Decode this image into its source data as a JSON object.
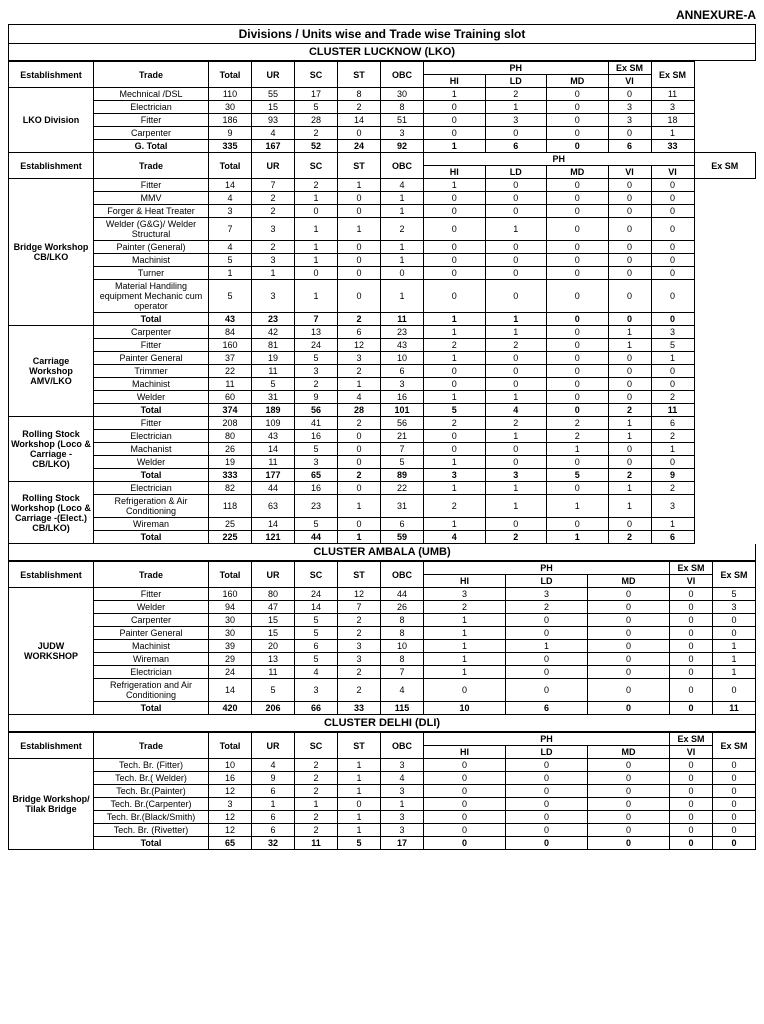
{
  "annex": "ANNEXURE-A",
  "title": "Divisions / Units wise and Trade wise Training slot",
  "clusters": [
    {
      "name": "CLUSTER LUCKNOW (LKO)",
      "sections": [
        {
          "est": "LKO Division",
          "phcols": [
            "HI",
            "LD",
            "MD"
          ],
          "exsmSplit": true,
          "rows": [
            {
              "t": "Mechnical /DSL",
              "d": [
                "110",
                "55",
                "17",
                "8",
                "30",
                "1",
                "2",
                "0",
                "0",
                "11"
              ]
            },
            {
              "t": "Electrician",
              "d": [
                "30",
                "15",
                "5",
                "2",
                "8",
                "0",
                "1",
                "0",
                "3",
                "3"
              ]
            },
            {
              "t": "Fitter",
              "d": [
                "186",
                "93",
                "28",
                "14",
                "51",
                "0",
                "3",
                "0",
                "3",
                "18"
              ]
            },
            {
              "t": "Carpenter",
              "d": [
                "9",
                "4",
                "2",
                "0",
                "3",
                "0",
                "0",
                "0",
                "0",
                "1"
              ]
            },
            {
              "t": "G. Total",
              "d": [
                "335",
                "167",
                "52",
                "24",
                "92",
                "1",
                "6",
                "0",
                "6",
                "33"
              ],
              "bold": true
            }
          ]
        },
        {
          "est": "Bridge Workshop CB/LKO",
          "phcols": [
            "HI",
            "LD",
            "MD",
            "VI"
          ],
          "exsmSplit": false,
          "rows": [
            {
              "t": "Fitter",
              "d": [
                "14",
                "7",
                "2",
                "1",
                "4",
                "1",
                "0",
                "0",
                "0",
                "0"
              ]
            },
            {
              "t": "MMV",
              "d": [
                "4",
                "2",
                "1",
                "0",
                "1",
                "0",
                "0",
                "0",
                "0",
                "0"
              ]
            },
            {
              "t": "Forger & Heat Treater",
              "d": [
                "3",
                "2",
                "0",
                "0",
                "1",
                "0",
                "0",
                "0",
                "0",
                "0"
              ]
            },
            {
              "t": "Welder (G&G)/ Welder Structural",
              "d": [
                "7",
                "3",
                "1",
                "1",
                "2",
                "0",
                "1",
                "0",
                "0",
                "0"
              ]
            },
            {
              "t": "Painter (General)",
              "d": [
                "4",
                "2",
                "1",
                "0",
                "1",
                "0",
                "0",
                "0",
                "0",
                "0"
              ]
            },
            {
              "t": "Machinist",
              "d": [
                "5",
                "3",
                "1",
                "0",
                "1",
                "0",
                "0",
                "0",
                "0",
                "0"
              ]
            },
            {
              "t": "Turner",
              "d": [
                "1",
                "1",
                "0",
                "0",
                "0",
                "0",
                "0",
                "0",
                "0",
                "0"
              ]
            },
            {
              "t": "Material Handiling equipment Mechanic cum operator",
              "d": [
                "5",
                "3",
                "1",
                "0",
                "1",
                "0",
                "0",
                "0",
                "0",
                "0"
              ]
            },
            {
              "t": "Total",
              "d": [
                "43",
                "23",
                "7",
                "2",
                "11",
                "1",
                "1",
                "0",
                "0",
                "0"
              ],
              "bold": true
            }
          ]
        },
        {
          "est": "Carriage Workshop AMV/LKO",
          "phcols": [
            "HI",
            "LD",
            "MD",
            "VI"
          ],
          "exsmSplit": false,
          "nohdr": true,
          "rows": [
            {
              "t": "Carpenter",
              "d": [
                "84",
                "42",
                "13",
                "6",
                "23",
                "1",
                "1",
                "0",
                "1",
                "3"
              ]
            },
            {
              "t": "Fitter",
              "d": [
                "160",
                "81",
                "24",
                "12",
                "43",
                "2",
                "2",
                "0",
                "1",
                "5"
              ]
            },
            {
              "t": "Painter General",
              "d": [
                "37",
                "19",
                "5",
                "3",
                "10",
                "1",
                "0",
                "0",
                "0",
                "1"
              ]
            },
            {
              "t": "Trimmer",
              "d": [
                "22",
                "11",
                "3",
                "2",
                "6",
                "0",
                "0",
                "0",
                "0",
                "0"
              ]
            },
            {
              "t": "Machinist",
              "d": [
                "11",
                "5",
                "2",
                "1",
                "3",
                "0",
                "0",
                "0",
                "0",
                "0"
              ]
            },
            {
              "t": "Welder",
              "d": [
                "60",
                "31",
                "9",
                "4",
                "16",
                "1",
                "1",
                "0",
                "0",
                "2"
              ]
            },
            {
              "t": "Total",
              "d": [
                "374",
                "189",
                "56",
                "28",
                "101",
                "5",
                "4",
                "0",
                "2",
                "11"
              ],
              "bold": true
            }
          ]
        },
        {
          "est": "Rolling Stock Workshop (Loco & Carriage - CB/LKO)",
          "phcols": [
            "HI",
            "LD",
            "MD",
            "VI"
          ],
          "exsmSplit": false,
          "nohdr": true,
          "rows": [
            {
              "t": "Fitter",
              "d": [
                "208",
                "109",
                "41",
                "2",
                "56",
                "2",
                "2",
                "2",
                "1",
                "6"
              ]
            },
            {
              "t": "Electrician",
              "d": [
                "80",
                "43",
                "16",
                "0",
                "21",
                "0",
                "1",
                "2",
                "1",
                "2"
              ]
            },
            {
              "t": "Machanist",
              "d": [
                "26",
                "14",
                "5",
                "0",
                "7",
                "0",
                "0",
                "1",
                "0",
                "1"
              ]
            },
            {
              "t": "Welder",
              "d": [
                "19",
                "11",
                "3",
                "0",
                "5",
                "1",
                "0",
                "0",
                "0",
                "0"
              ]
            },
            {
              "t": "Total",
              "d": [
                "333",
                "177",
                "65",
                "2",
                "89",
                "3",
                "3",
                "5",
                "2",
                "9"
              ],
              "bold": true
            }
          ]
        },
        {
          "est": "Rolling Stock Workshop (Loco & Carriage -(Elect.) CB/LKO)",
          "phcols": [
            "HI",
            "LD",
            "MD",
            "VI"
          ],
          "exsmSplit": false,
          "nohdr": true,
          "rows": [
            {
              "t": "Electrician",
              "d": [
                "82",
                "44",
                "16",
                "0",
                "22",
                "1",
                "1",
                "0",
                "1",
                "2"
              ]
            },
            {
              "t": "Refrigeration & Air Conditioning",
              "d": [
                "118",
                "63",
                "23",
                "1",
                "31",
                "2",
                "1",
                "1",
                "1",
                "3"
              ]
            },
            {
              "t": "Wireman",
              "d": [
                "25",
                "14",
                "5",
                "0",
                "6",
                "1",
                "0",
                "0",
                "0",
                "1"
              ]
            },
            {
              "t": "Total",
              "d": [
                "225",
                "121",
                "44",
                "1",
                "59",
                "4",
                "2",
                "1",
                "2",
                "6"
              ],
              "bold": true
            }
          ]
        }
      ]
    },
    {
      "name": "CLUSTER AMBALA (UMB)",
      "sections": [
        {
          "est": "JUDW WORKSHOP",
          "phcols": [
            "HI",
            "LD",
            "MD"
          ],
          "exsmSplit": true,
          "rows": [
            {
              "t": "Fitter",
              "d": [
                "160",
                "80",
                "24",
                "12",
                "44",
                "3",
                "3",
                "0",
                "0",
                "5"
              ]
            },
            {
              "t": "Welder",
              "d": [
                "94",
                "47",
                "14",
                "7",
                "26",
                "2",
                "2",
                "0",
                "0",
                "3"
              ]
            },
            {
              "t": "Carpenter",
              "d": [
                "30",
                "15",
                "5",
                "2",
                "8",
                "1",
                "0",
                "0",
                "0",
                "0"
              ]
            },
            {
              "t": "Painter General",
              "d": [
                "30",
                "15",
                "5",
                "2",
                "8",
                "1",
                "0",
                "0",
                "0",
                "0"
              ]
            },
            {
              "t": "Machinist",
              "d": [
                "39",
                "20",
                "6",
                "3",
                "10",
                "1",
                "1",
                "0",
                "0",
                "1"
              ]
            },
            {
              "t": "Wireman",
              "d": [
                "29",
                "13",
                "5",
                "3",
                "8",
                "1",
                "0",
                "0",
                "0",
                "1"
              ]
            },
            {
              "t": "Electrician",
              "d": [
                "24",
                "11",
                "4",
                "2",
                "7",
                "1",
                "0",
                "0",
                "0",
                "1"
              ]
            },
            {
              "t": "Refrigeration and Air Conditioning",
              "d": [
                "14",
                "5",
                "3",
                "2",
                "4",
                "0",
                "0",
                "0",
                "0",
                "0"
              ]
            },
            {
              "t": "Total",
              "d": [
                "420",
                "206",
                "66",
                "33",
                "115",
                "10",
                "6",
                "0",
                "0",
                "11"
              ],
              "bold": true
            }
          ]
        }
      ]
    },
    {
      "name": "CLUSTER DELHI (DLI)",
      "sections": [
        {
          "est": "Bridge Workshop/ Tilak Bridge",
          "phcols": [
            "HI",
            "LD",
            "MD"
          ],
          "exsmSplit": true,
          "rows": [
            {
              "t": "Tech. Br. (Fitter)",
              "d": [
                "10",
                "4",
                "2",
                "1",
                "3",
                "0",
                "0",
                "0",
                "0",
                "0"
              ]
            },
            {
              "t": "Tech. Br.( Welder)",
              "d": [
                "16",
                "9",
                "2",
                "1",
                "4",
                "0",
                "0",
                "0",
                "0",
                "0"
              ]
            },
            {
              "t": "Tech. Br.(Painter)",
              "d": [
                "12",
                "6",
                "2",
                "1",
                "3",
                "0",
                "0",
                "0",
                "0",
                "0"
              ]
            },
            {
              "t": "Tech. Br.(Carpenter)",
              "d": [
                "3",
                "1",
                "1",
                "0",
                "1",
                "0",
                "0",
                "0",
                "0",
                "0"
              ]
            },
            {
              "t": "Tech. Br.(Black/Smith)",
              "d": [
                "12",
                "6",
                "2",
                "1",
                "3",
                "0",
                "0",
                "0",
                "0",
                "0"
              ]
            },
            {
              "t": "Tech. Br. (Rivetter)",
              "d": [
                "12",
                "6",
                "2",
                "1",
                "3",
                "0",
                "0",
                "0",
                "0",
                "0"
              ]
            },
            {
              "t": "Total",
              "d": [
                "65",
                "32",
                "11",
                "5",
                "17",
                "0",
                "0",
                "0",
                "0",
                "0"
              ],
              "bold": true
            }
          ]
        }
      ]
    }
  ],
  "hd": {
    "est": "Establishment",
    "trade": "Trade",
    "total": "Total",
    "ur": "UR",
    "sc": "SC",
    "st": "ST",
    "obc": "OBC",
    "ph": "PH",
    "exsm": "Ex SM",
    "vi": "VI"
  }
}
